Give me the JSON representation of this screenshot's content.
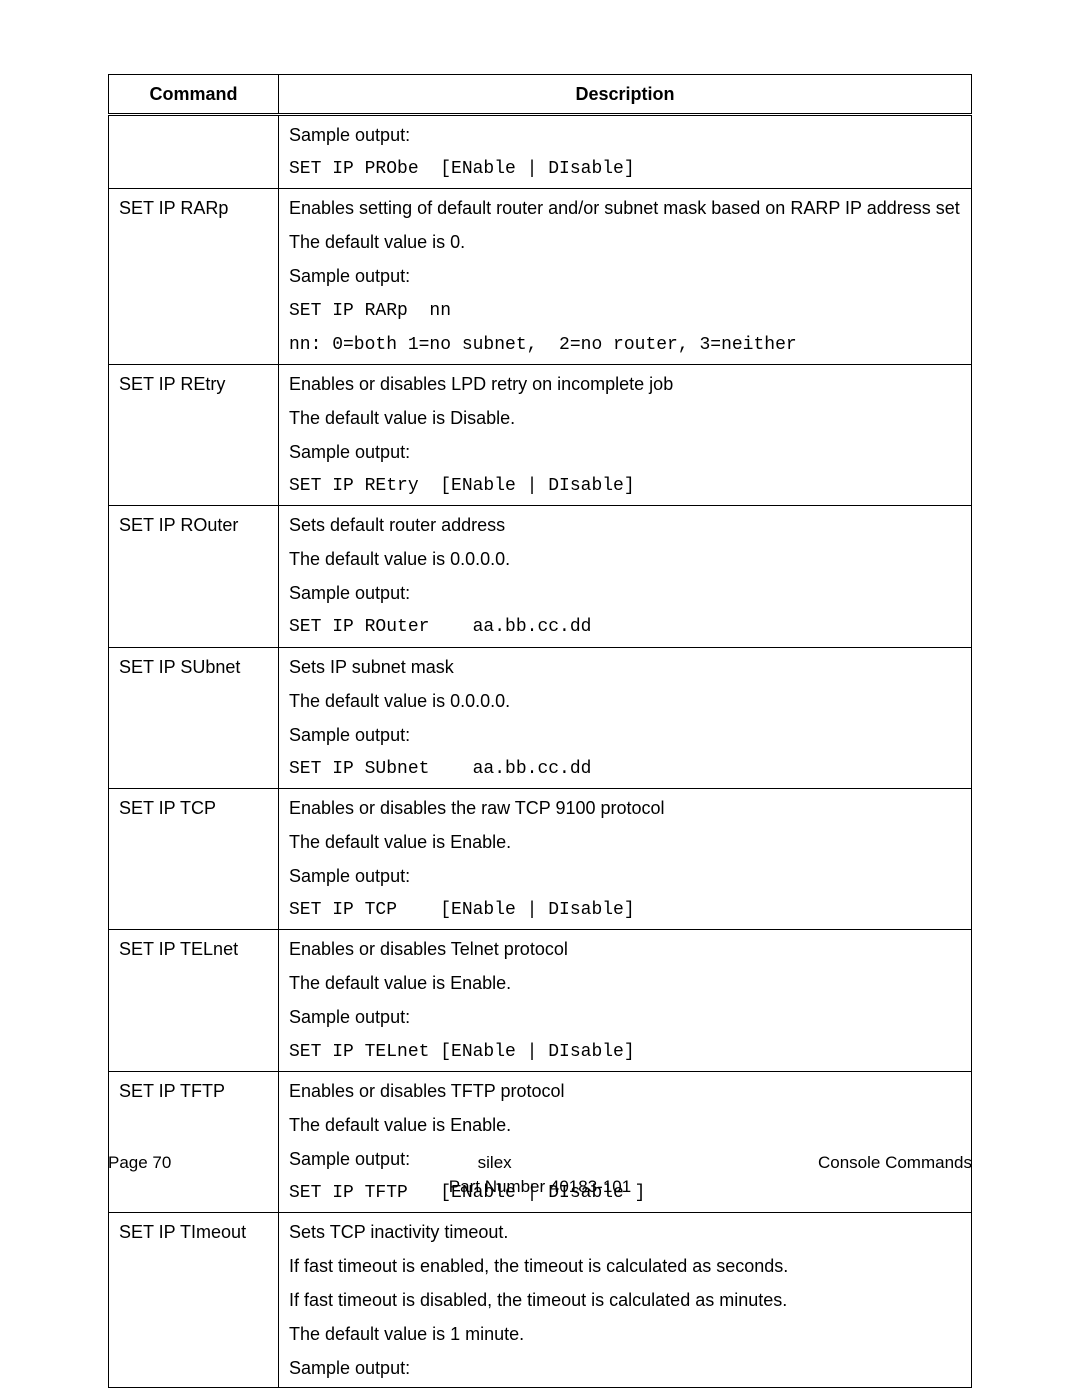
{
  "table": {
    "headers": {
      "command": "Command",
      "description": "Description"
    },
    "rows": [
      {
        "command": "",
        "lines": [
          {
            "type": "text",
            "text": "Sample output:"
          },
          {
            "type": "mono",
            "text": "SET IP PRObe  [ENable | DIsable]"
          }
        ]
      },
      {
        "command": "SET IP RARp",
        "lines": [
          {
            "type": "text",
            "text": "Enables setting of default router and/or subnet mask based on RARP IP address set"
          },
          {
            "type": "text",
            "text": "The default value is 0."
          },
          {
            "type": "text",
            "text": "Sample output:"
          },
          {
            "type": "mono",
            "text": "SET IP RARp  nn"
          },
          {
            "type": "mono2",
            "text": "nn: 0=both 1=no subnet,  2=no router, 3=neither"
          }
        ]
      },
      {
        "command": "SET IP REtry",
        "lines": [
          {
            "type": "text",
            "text": "Enables or disables LPD retry on incomplete job"
          },
          {
            "type": "text",
            "text": "The default value is Disable."
          },
          {
            "type": "text",
            "text": "Sample output:"
          },
          {
            "type": "mono",
            "text": "SET IP REtry  [ENable | DIsable]"
          }
        ]
      },
      {
        "command": "SET IP ROuter",
        "lines": [
          {
            "type": "text",
            "text": "Sets default router address"
          },
          {
            "type": "text",
            "text": "The default value is 0.0.0.0."
          },
          {
            "type": "text",
            "text": "Sample output:"
          },
          {
            "type": "mono",
            "text": "SET IP ROuter    aa.bb.cc.dd"
          }
        ]
      },
      {
        "command": "SET IP SUbnet",
        "lines": [
          {
            "type": "text",
            "text": "Sets IP subnet mask"
          },
          {
            "type": "text",
            "text": "The default value is 0.0.0.0."
          },
          {
            "type": "text",
            "text": "Sample output:"
          },
          {
            "type": "mono",
            "text": "SET IP SUbnet    aa.bb.cc.dd"
          }
        ]
      },
      {
        "command": "SET IP TCP",
        "lines": [
          {
            "type": "text",
            "text": "Enables or disables the raw TCP 9100 protocol"
          },
          {
            "type": "text",
            "text": "The default value is Enable."
          },
          {
            "type": "text",
            "text": "Sample output:"
          },
          {
            "type": "mono",
            "text": "SET IP TCP    [ENable | DIsable]"
          }
        ]
      },
      {
        "command": "SET IP TELnet",
        "lines": [
          {
            "type": "text",
            "text": "Enables or disables Telnet protocol"
          },
          {
            "type": "text",
            "text": "The default value is Enable."
          },
          {
            "type": "text",
            "text": "Sample output:"
          },
          {
            "type": "mono",
            "text": "SET IP TELnet [ENable | DIsable]"
          }
        ]
      },
      {
        "command": "SET IP TFTP",
        "lines": [
          {
            "type": "text",
            "text": "Enables or disables TFTP protocol"
          },
          {
            "type": "text",
            "text": "The default value is Enable."
          },
          {
            "type": "text",
            "text": "Sample output:"
          },
          {
            "type": "mono",
            "text": "SET IP TFTP   [ENable | DIsable ]"
          }
        ]
      },
      {
        "command": "SET IP TImeout",
        "lines": [
          {
            "type": "text",
            "text": "Sets TCP inactivity timeout."
          },
          {
            "type": "text",
            "text": "If fast timeout is enabled, the timeout is calculated as seconds."
          },
          {
            "type": "text",
            "text": "If fast timeout is disabled, the timeout is calculated as minutes."
          },
          {
            "type": "text",
            "text": "The default value is 1 minute."
          },
          {
            "type": "text",
            "text": "Sample output:"
          }
        ]
      }
    ]
  },
  "footer": {
    "left": "Page 70",
    "center": "silex",
    "right": "Console Commands",
    "part": "Part Number 40183-101"
  }
}
